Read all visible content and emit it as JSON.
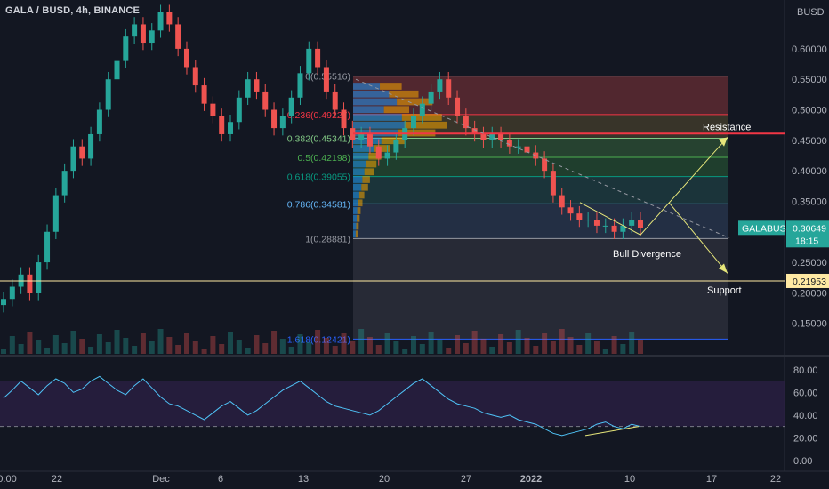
{
  "header": {
    "title": "GALA / BUSD, 4h, BINANCE"
  },
  "currency": "BUSD",
  "chart_data": [
    {
      "type": "candlestick",
      "title": "GALA / BUSD, 4h, BINANCE",
      "ylim": [
        0.1,
        0.68
      ],
      "yticks": [
        {
          "v": 0.6,
          "label": "0.60000"
        },
        {
          "v": 0.55,
          "label": "0.55000"
        },
        {
          "v": 0.5,
          "label": "0.50000"
        },
        {
          "v": 0.45,
          "label": "0.45000"
        },
        {
          "v": 0.4,
          "label": "0.40000"
        },
        {
          "v": 0.35,
          "label": "0.35000"
        },
        {
          "v": 0.25,
          "label": "0.25000"
        },
        {
          "v": 0.2,
          "label": "0.20000"
        },
        {
          "v": 0.15,
          "label": "0.15000"
        }
      ],
      "xticks": [
        "0:00",
        "22",
        "Dec",
        "6",
        "13",
        "20",
        "27",
        "2022",
        "10",
        "17",
        "22"
      ],
      "approx_closes": [
        0.19,
        0.21,
        0.23,
        0.2,
        0.25,
        0.3,
        0.36,
        0.4,
        0.44,
        0.42,
        0.46,
        0.5,
        0.55,
        0.58,
        0.62,
        0.64,
        0.61,
        0.63,
        0.66,
        0.64,
        0.6,
        0.57,
        0.54,
        0.51,
        0.49,
        0.46,
        0.48,
        0.52,
        0.55,
        0.53,
        0.5,
        0.47,
        0.49,
        0.52,
        0.56,
        0.6,
        0.57,
        0.53,
        0.5,
        0.47,
        0.45,
        0.46,
        0.44,
        0.42,
        0.43,
        0.45,
        0.47,
        0.49,
        0.51,
        0.53,
        0.55,
        0.52,
        0.49,
        0.47,
        0.46,
        0.45,
        0.46,
        0.45,
        0.44,
        0.44,
        0.43,
        0.42,
        0.4,
        0.36,
        0.34,
        0.33,
        0.32,
        0.32,
        0.31,
        0.31,
        0.3,
        0.31,
        0.32,
        0.306
      ],
      "fib_levels": [
        {
          "ratio": "0",
          "price": 0.55516,
          "label": "0(0.55516)",
          "color": "#9598a1"
        },
        {
          "ratio": "0.236",
          "price": 0.49227,
          "label": "0.236(0.49227)",
          "color": "#f23645"
        },
        {
          "ratio": "0.382",
          "price": 0.45341,
          "label": "0.382(0.45341)",
          "color": "#81c784"
        },
        {
          "ratio": "0.5",
          "price": 0.42198,
          "label": "0.5(0.42198)",
          "color": "#4caf50"
        },
        {
          "ratio": "0.618",
          "price": 0.39055,
          "label": "0.618(0.39055)",
          "color": "#089981"
        },
        {
          "ratio": "0.786",
          "price": 0.34581,
          "label": "0.786(0.34581)",
          "color": "#64b5f6"
        },
        {
          "ratio": "1",
          "price": 0.28881,
          "label": "1(0.28881)",
          "color": "#9598a1"
        },
        {
          "ratio": "1.618",
          "price": 0.12421,
          "label": "1.618(0.12421)",
          "color": "#2962ff"
        }
      ],
      "resistance": {
        "price": 0.461,
        "label": "Resistance",
        "color": "#f23645"
      },
      "support": {
        "price": 0.21953,
        "label": "Support",
        "tag": "0.21953",
        "color": "#ffe9a3"
      },
      "last_price": {
        "symbol": "GALABUSD",
        "value": "0.30649",
        "countdown": "18:15",
        "color": "#26a69a"
      },
      "annotations": [
        "Bull Divergence"
      ]
    },
    {
      "type": "line",
      "title": "",
      "ylim": [
        0,
        90
      ],
      "yticks": [
        {
          "v": 80,
          "label": "80.00"
        },
        {
          "v": 60,
          "label": "60.00"
        },
        {
          "v": 40,
          "label": "40.00"
        },
        {
          "v": 20,
          "label": "20.00"
        },
        {
          "v": 0,
          "label": "0.00"
        }
      ],
      "bands": [
        70,
        30
      ],
      "approx_values": [
        55,
        62,
        70,
        64,
        58,
        66,
        72,
        68,
        60,
        63,
        70,
        74,
        68,
        62,
        58,
        66,
        72,
        64,
        56,
        50,
        48,
        44,
        40,
        36,
        42,
        48,
        52,
        46,
        40,
        44,
        50,
        56,
        62,
        66,
        70,
        64,
        58,
        52,
        48,
        46,
        44,
        42,
        40,
        44,
        50,
        56,
        62,
        68,
        72,
        66,
        60,
        54,
        50,
        48,
        46,
        42,
        40,
        38,
        40,
        36,
        34,
        32,
        28,
        24,
        22,
        24,
        26,
        28,
        32,
        34,
        30,
        28,
        32,
        30
      ]
    }
  ],
  "colors": {
    "up": "#26a69a",
    "down": "#ef5350",
    "background": "#131722",
    "rsi_line": "#7e57c2",
    "rsi_fill": "#2a1f44"
  }
}
